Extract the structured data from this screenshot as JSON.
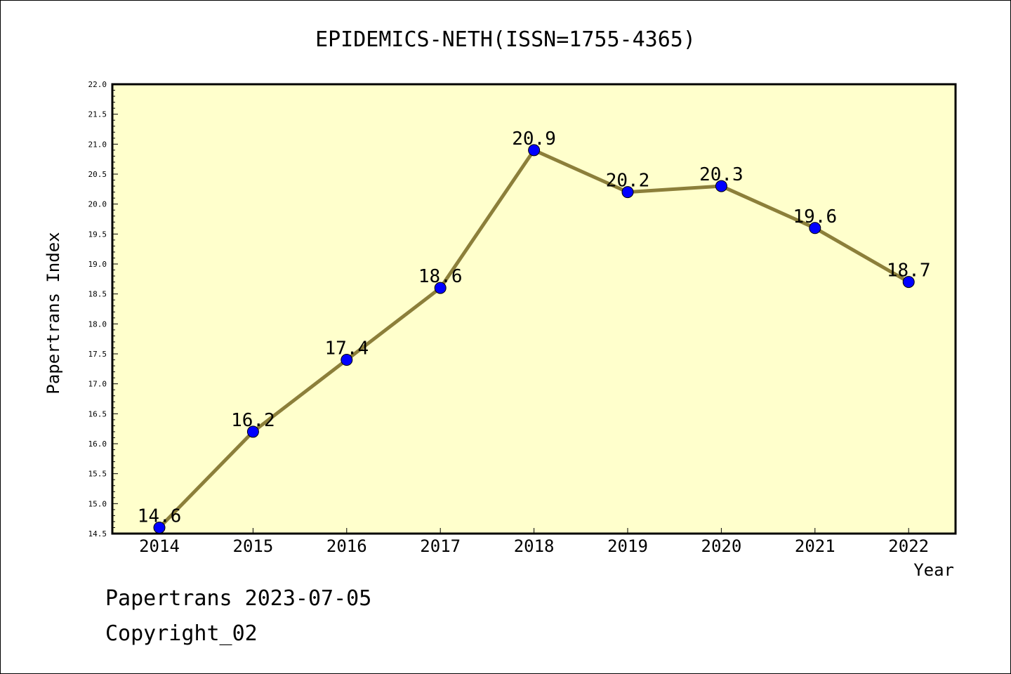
{
  "chart_data": {
    "type": "line",
    "title": "EPIDEMICS-NETH(ISSN=1755-4365)",
    "xlabel": "Year",
    "ylabel": "Papertrans Index",
    "categories": [
      "2014",
      "2015",
      "2016",
      "2017",
      "2018",
      "2019",
      "2020",
      "2021",
      "2022"
    ],
    "values": [
      14.6,
      16.2,
      17.4,
      18.6,
      20.9,
      20.2,
      20.3,
      19.6,
      18.7
    ],
    "data_labels": [
      "14.6",
      "16.2",
      "17.4",
      "18.6",
      "20.9",
      "20.2",
      "20.3",
      "19.6",
      "18.7"
    ],
    "ylim": [
      14.5,
      22.0
    ],
    "yticks": [
      "14.5",
      "15.0",
      "15.5",
      "16.0",
      "16.5",
      "17.0",
      "17.5",
      "18.0",
      "18.5",
      "19.0",
      "19.5",
      "20.0",
      "20.5",
      "21.0",
      "21.5",
      "22.0"
    ],
    "grid": false,
    "colors": {
      "plot_background": "#ffffcc",
      "line": "#8c7f3a",
      "marker": "#0000ff"
    }
  },
  "footer": {
    "source": "Papertrans 2023-07-05",
    "copyright": "Copyright_02"
  }
}
